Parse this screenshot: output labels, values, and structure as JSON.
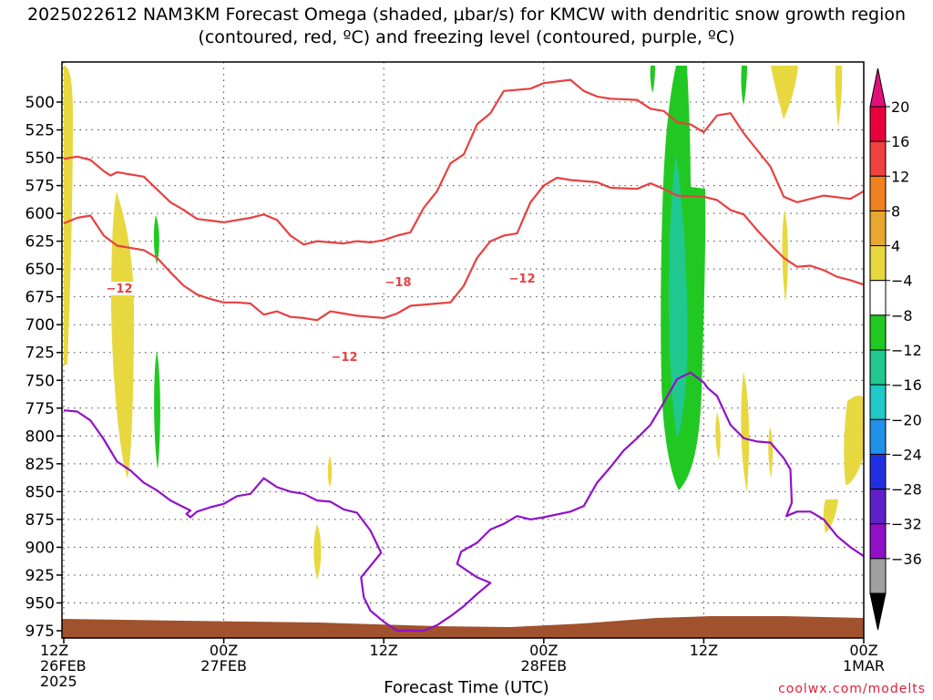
{
  "chart_data": {
    "type": "time-height cross-section",
    "title": "2025022612 NAM3KM Forecast Omega (shaded, μbar/s) for KMCW with dendritic snow growth region (contoured, red, ºC) and freezing level (contoured, purple, ºC)",
    "xlabel": "Forecast Time (UTC)",
    "credit": "coolwx.com/modelts",
    "y_ticks": [
      500,
      525,
      550,
      575,
      600,
      625,
      650,
      675,
      700,
      725,
      750,
      775,
      800,
      825,
      850,
      875,
      900,
      925,
      950,
      975
    ],
    "x_ticks": [
      {
        "hour": 0,
        "l1": "12Z",
        "l2": "26FEB",
        "l3": "2025"
      },
      {
        "hour": 12,
        "l1": "00Z",
        "l2": "27FEB",
        "l3": ""
      },
      {
        "hour": 24,
        "l1": "12Z",
        "l2": "",
        "l3": ""
      },
      {
        "hour": 36,
        "l1": "00Z",
        "l2": "28FEB",
        "l3": ""
      },
      {
        "hour": 48,
        "l1": "12Z",
        "l2": "",
        "l3": ""
      },
      {
        "hour": 60,
        "l1": "00Z",
        "l2": "1MAR",
        "l3": ""
      }
    ],
    "colorbar_labels": [
      "20",
      "16",
      "12",
      "8",
      "4",
      "−4",
      "−8",
      "−12",
      "−16",
      "−20",
      "−24",
      "−28",
      "−32",
      "−36"
    ],
    "colorbar_colors": [
      "#e8003c",
      "#f04040",
      "#f08020",
      "#e8a830",
      "#e8d840",
      "#ffffff",
      "#22c822",
      "#20c890",
      "#20c8c8",
      "#2090e8",
      "#2030e0",
      "#6020c8",
      "#9010c8",
      "#a0a0a0"
    ],
    "contour_labels": [
      "−12",
      "−18",
      "−12",
      "−12"
    ],
    "series": [
      {
        "color": "#e84040",
        "points": [
          [
            0,
            551
          ],
          [
            1,
            549
          ],
          [
            2,
            552
          ],
          [
            3,
            562
          ],
          [
            3.5,
            566
          ],
          [
            4,
            563
          ],
          [
            6,
            567
          ],
          [
            8,
            590
          ],
          [
            9,
            597
          ],
          [
            10,
            605
          ],
          [
            12,
            608
          ],
          [
            14,
            604
          ],
          [
            15,
            601
          ],
          [
            16,
            606
          ],
          [
            17,
            620
          ],
          [
            18,
            628
          ],
          [
            19,
            625
          ],
          [
            21,
            627
          ],
          [
            22,
            625
          ],
          [
            23,
            626
          ],
          [
            24,
            624
          ],
          [
            25,
            620
          ],
          [
            26,
            617
          ],
          [
            27,
            595
          ],
          [
            28,
            580
          ],
          [
            29,
            555
          ],
          [
            30,
            547
          ],
          [
            31,
            520
          ],
          [
            32,
            510
          ],
          [
            33,
            490
          ],
          [
            35,
            488
          ],
          [
            36,
            483
          ],
          [
            38,
            480
          ],
          [
            39,
            490
          ],
          [
            40,
            495
          ],
          [
            41,
            497
          ],
          [
            43,
            498
          ],
          [
            44,
            506
          ],
          [
            45,
            508
          ],
          [
            46,
            518
          ],
          [
            47,
            520
          ],
          [
            48,
            527
          ],
          [
            49,
            512
          ],
          [
            50,
            510
          ],
          [
            51,
            528
          ],
          [
            52,
            543
          ],
          [
            53,
            558
          ],
          [
            54,
            585
          ],
          [
            55,
            590
          ],
          [
            56,
            587
          ],
          [
            57,
            584
          ],
          [
            59,
            587
          ],
          [
            60,
            580
          ],
          [
            61,
            575
          ],
          [
            62,
            575
          ]
        ]
      },
      {
        "color": "#e84040",
        "points": [
          [
            0,
            609
          ],
          [
            1,
            604
          ],
          [
            2,
            602
          ],
          [
            3,
            620
          ],
          [
            4,
            629
          ],
          [
            6,
            633
          ],
          [
            7,
            640
          ],
          [
            8,
            653
          ],
          [
            9,
            665
          ],
          [
            10,
            673
          ],
          [
            11,
            677
          ],
          [
            12,
            680
          ],
          [
            13,
            680
          ],
          [
            14,
            681
          ],
          [
            15,
            691
          ],
          [
            16,
            688
          ],
          [
            17,
            693
          ],
          [
            18,
            694
          ],
          [
            19,
            696
          ],
          [
            20,
            688
          ],
          [
            21,
            690
          ],
          [
            22,
            692
          ],
          [
            23,
            693
          ],
          [
            24,
            694
          ],
          [
            25,
            690
          ],
          [
            26,
            683
          ],
          [
            28,
            681
          ],
          [
            29,
            680
          ],
          [
            30,
            665
          ],
          [
            31,
            640
          ],
          [
            32,
            625
          ],
          [
            33,
            620
          ],
          [
            34,
            618
          ],
          [
            35,
            590
          ],
          [
            36,
            575
          ],
          [
            37,
            568
          ],
          [
            38,
            570
          ],
          [
            40,
            572
          ],
          [
            41,
            577
          ],
          [
            43,
            578
          ],
          [
            44,
            573
          ],
          [
            45,
            578
          ],
          [
            46,
            584
          ],
          [
            48,
            585
          ],
          [
            49,
            588
          ],
          [
            50,
            597
          ],
          [
            51,
            601
          ],
          [
            52,
            615
          ],
          [
            53,
            628
          ],
          [
            54,
            640
          ],
          [
            55,
            648
          ],
          [
            56,
            647
          ],
          [
            57,
            651
          ],
          [
            58,
            657
          ],
          [
            59,
            660
          ],
          [
            60,
            664
          ],
          [
            61,
            660
          ],
          [
            62,
            654
          ]
        ]
      },
      {
        "color": "#9012c8",
        "points": [
          [
            0,
            777
          ],
          [
            1,
            778
          ],
          [
            2,
            786
          ],
          [
            3,
            803
          ],
          [
            4,
            823
          ],
          [
            5,
            831
          ],
          [
            6,
            842
          ],
          [
            7,
            849
          ],
          [
            8,
            858
          ],
          [
            9,
            864
          ],
          [
            9.5,
            867
          ],
          [
            9.2,
            870
          ],
          [
            9.5,
            873
          ],
          [
            10,
            868
          ],
          [
            11,
            864
          ],
          [
            12,
            861
          ],
          [
            13,
            854
          ],
          [
            14,
            852
          ],
          [
            15,
            838
          ],
          [
            16,
            846
          ],
          [
            17,
            850
          ],
          [
            18,
            852
          ],
          [
            19,
            858
          ],
          [
            20,
            859
          ],
          [
            21,
            866
          ],
          [
            22,
            869
          ],
          [
            23,
            885
          ],
          [
            23.8,
            905
          ],
          [
            22.3,
            927
          ],
          [
            22.5,
            945
          ],
          [
            23,
            957
          ],
          [
            24,
            967
          ],
          [
            25,
            975
          ],
          [
            26,
            975
          ],
          [
            27,
            975
          ],
          [
            28,
            970
          ],
          [
            29,
            962
          ],
          [
            30,
            953
          ],
          [
            31,
            942
          ],
          [
            32,
            932
          ],
          [
            31,
            927
          ],
          [
            29.5,
            915
          ],
          [
            29.8,
            904
          ],
          [
            31,
            896
          ],
          [
            32,
            884
          ],
          [
            33,
            879
          ],
          [
            34,
            872
          ],
          [
            35,
            875
          ],
          [
            36,
            873
          ],
          [
            38,
            868
          ],
          [
            39,
            863
          ],
          [
            40,
            842
          ],
          [
            41,
            828
          ],
          [
            42,
            813
          ],
          [
            43,
            802
          ],
          [
            44,
            790
          ],
          [
            45,
            770
          ],
          [
            46,
            749
          ],
          [
            47,
            743
          ],
          [
            48,
            752
          ],
          [
            48.3,
            757
          ],
          [
            49,
            764
          ],
          [
            50,
            790
          ],
          [
            51,
            802
          ],
          [
            52,
            805
          ],
          [
            53,
            806
          ],
          [
            54,
            820
          ],
          [
            54.5,
            830
          ],
          [
            54.6,
            860
          ],
          [
            54.2,
            872
          ],
          [
            55,
            868
          ],
          [
            56,
            868
          ],
          [
            57,
            875
          ],
          [
            58,
            890
          ],
          [
            59,
            900
          ],
          [
            60,
            908
          ],
          [
            61,
            920
          ],
          [
            62,
            935
          ]
        ]
      }
    ]
  }
}
